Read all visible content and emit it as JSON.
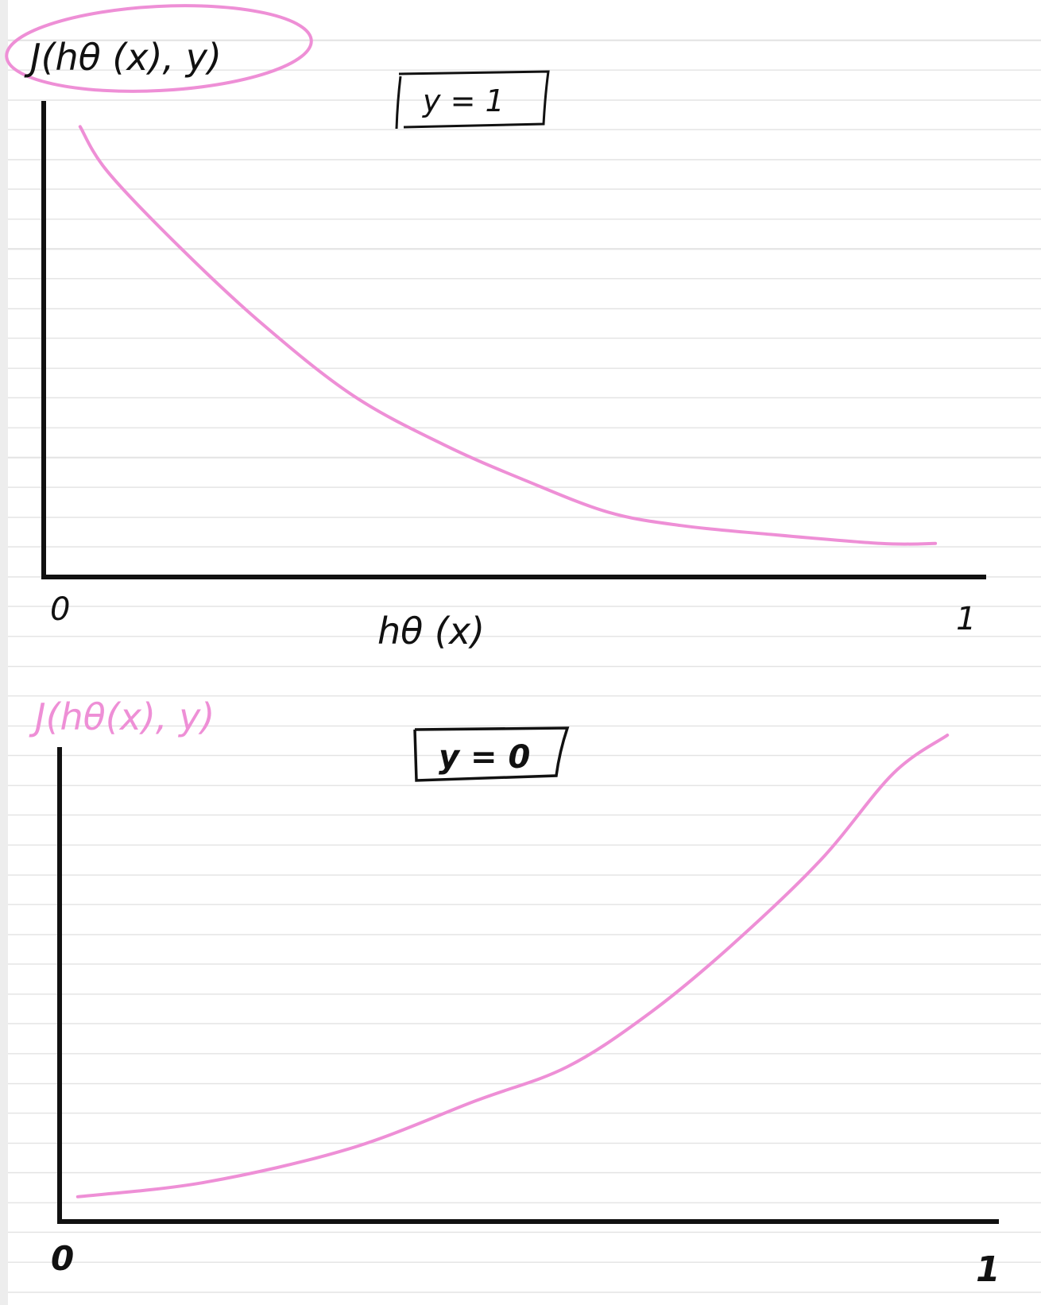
{
  "colors": {
    "ink": "#111111",
    "pink": "#ee8fd6",
    "ruled_line": "#e3e3e3"
  },
  "chart_data": [
    {
      "type": "line",
      "title": "y = 1",
      "ylabel": "J(hθ (x), y)",
      "xlabel": "hθ (x)",
      "xticks": [
        "0",
        "1"
      ],
      "xlim": [
        0,
        1
      ],
      "ylim": [
        0,
        1
      ],
      "grid": false,
      "series": [
        {
          "x": [
            0.04,
            0.07,
            0.15,
            0.24,
            0.34,
            0.44,
            0.53,
            0.62,
            0.7,
            0.8,
            0.92,
            0.98
          ],
          "y": [
            0.98,
            0.88,
            0.71,
            0.54,
            0.38,
            0.27,
            0.19,
            0.12,
            0.09,
            0.07,
            0.05,
            0.05
          ]
        }
      ]
    },
    {
      "type": "line",
      "title": "y = 0",
      "ylabel": "J(hθ(x), y)",
      "xlabel": "",
      "xticks": [
        "0",
        "1"
      ],
      "xlim": [
        0,
        1
      ],
      "ylim": [
        0,
        1
      ],
      "grid": false,
      "series": [
        {
          "x": [
            0.02,
            0.16,
            0.32,
            0.46,
            0.56,
            0.65,
            0.74,
            0.84,
            0.92,
            0.98
          ],
          "y": [
            0.04,
            0.07,
            0.14,
            0.24,
            0.31,
            0.42,
            0.56,
            0.74,
            0.92,
            1.0
          ]
        }
      ]
    }
  ]
}
